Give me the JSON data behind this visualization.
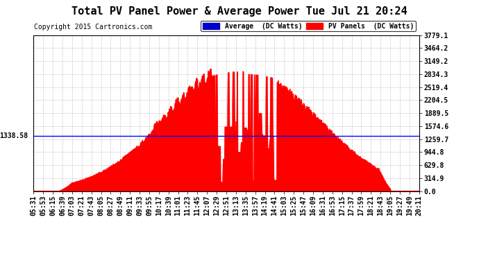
{
  "title": "Total PV Panel Power & Average Power Tue Jul 21 20:24",
  "copyright": "Copyright 2015 Cartronics.com",
  "average_value": 1338.58,
  "y_max": 3779.1,
  "y_min": 0.0,
  "y_ticks": [
    0.0,
    314.9,
    629.8,
    944.8,
    1259.7,
    1574.6,
    1889.5,
    2204.5,
    2519.4,
    2834.3,
    3149.2,
    3464.2,
    3779.1
  ],
  "background_color": "#ffffff",
  "fill_color": "#ff0000",
  "line_color": "#ff0000",
  "avg_line_color": "#0000ff",
  "legend_avg_color": "#0000cc",
  "legend_pv_color": "#ff0000",
  "legend_avg_text": "Average  (DC Watts)",
  "legend_pv_text": "PV Panels  (DC Watts)",
  "avg_label": "1338.58",
  "title_fontsize": 11,
  "copyright_fontsize": 7,
  "tick_fontsize": 7,
  "x_labels": [
    "05:31",
    "05:53",
    "06:15",
    "06:39",
    "07:03",
    "07:21",
    "07:43",
    "08:05",
    "08:27",
    "08:49",
    "09:11",
    "09:33",
    "09:55",
    "10:17",
    "10:39",
    "11:01",
    "11:23",
    "11:45",
    "12:07",
    "12:29",
    "12:51",
    "13:13",
    "13:35",
    "13:57",
    "14:19",
    "14:41",
    "15:03",
    "15:25",
    "15:47",
    "16:09",
    "16:31",
    "16:53",
    "17:15",
    "17:37",
    "17:59",
    "18:21",
    "18:43",
    "19:05",
    "19:27",
    "19:49",
    "20:11"
  ]
}
